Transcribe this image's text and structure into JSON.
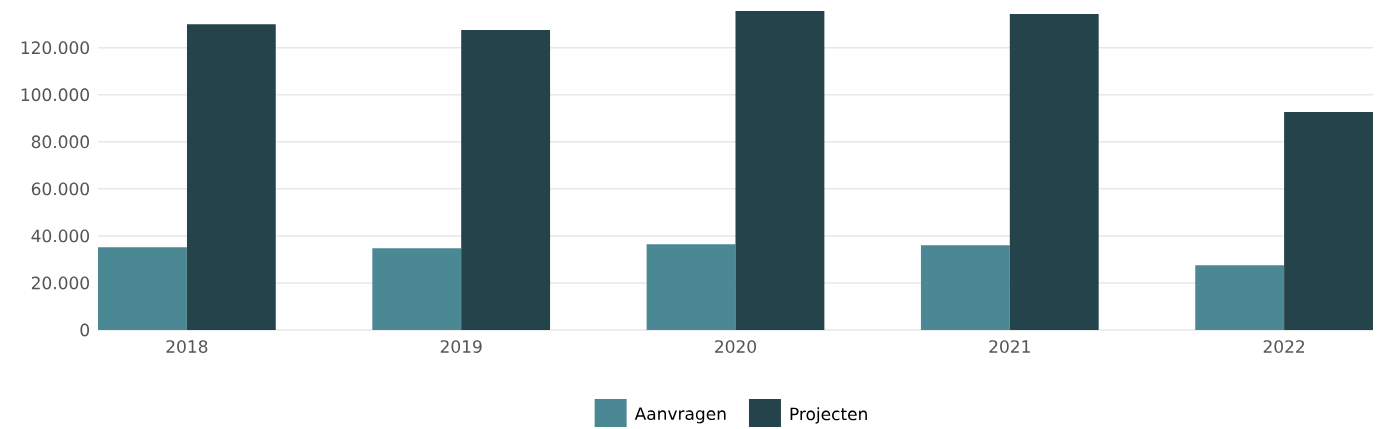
{
  "chart_data": {
    "type": "bar",
    "categories": [
      "2018",
      "2019",
      "2020",
      "2021",
      "2022"
    ],
    "series": [
      {
        "name": "Aanvragen",
        "color": "#4a8894",
        "values": [
          35200,
          34800,
          36500,
          36000,
          27500
        ]
      },
      {
        "name": "Projecten",
        "color": "#25434a",
        "values": [
          130000,
          127500,
          135600,
          134300,
          92700
        ]
      }
    ],
    "ylim": [
      0,
      135600
    ],
    "yticks": [
      {
        "value": 0,
        "label": "0"
      },
      {
        "value": 20000,
        "label": "20.000"
      },
      {
        "value": 40000,
        "label": "40.000"
      },
      {
        "value": 60000,
        "label": "60.000"
      },
      {
        "value": 80000,
        "label": "80.000"
      },
      {
        "value": 100000,
        "label": "100.000"
      },
      {
        "value": 120000,
        "label": "120.000"
      }
    ],
    "grid": "y",
    "legend": "bottom"
  }
}
